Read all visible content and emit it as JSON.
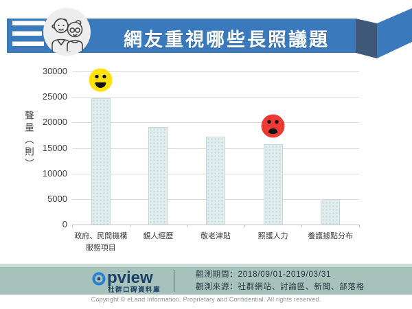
{
  "colors": {
    "banner_blue": "#3a7abc",
    "banner_fold": "#3d5878",
    "bar_fill": "#e2edee",
    "bar_border": "#c7dadb",
    "grid_line": "#dcdcdc",
    "happy_yellow": "#ffe20a",
    "sad_red": "#ee3a34",
    "footer_band": "#a6c2ba",
    "footer_strip": "#cbdad4",
    "logo_navy": "#1d4066",
    "logo_blue": "#2b7fd4"
  },
  "header": {
    "title": "網友重視哪些長照議題",
    "icon": "elderly-couple-icon"
  },
  "chart_data": {
    "type": "bar",
    "title": "網友重視哪些長照議題",
    "categories": [
      "政府、民間機構服務項目",
      "親人經歷",
      "敬老津貼",
      "照護人力",
      "養護據點分布"
    ],
    "category_lines": [
      [
        "政府、民間機構",
        "服務項目"
      ],
      [
        "親人經歷"
      ],
      [
        "敬老津貼"
      ],
      [
        "照護人力"
      ],
      [
        "養護據點分布"
      ]
    ],
    "values": [
      24800,
      19100,
      17200,
      15800,
      4700
    ],
    "xlabel": "",
    "ylabel": "聲量（則）",
    "ylim": [
      0,
      30000
    ],
    "ytick_step": 5000,
    "grid": true,
    "legend": false,
    "bar_color": "#e2edee",
    "annotations": [
      {
        "category": "政府、民間機構服務項目",
        "icon": "happy-face-icon",
        "color": "#ffe20a"
      },
      {
        "category": "照護人力",
        "icon": "sad-face-icon",
        "color": "#ee3a34"
      }
    ]
  },
  "footer": {
    "logo_text": "opview",
    "logo_text_rest": "pview",
    "logo_subtitle": "社群口碑資料庫",
    "period_label": "觀測期間：2018/09/01-2019/03/31",
    "source_label": "觀測來源：社群網站、討論區、新聞、部落格",
    "copyright": "Copyright © eLand Information. Proprietary and Confidential. All rights reserved."
  }
}
